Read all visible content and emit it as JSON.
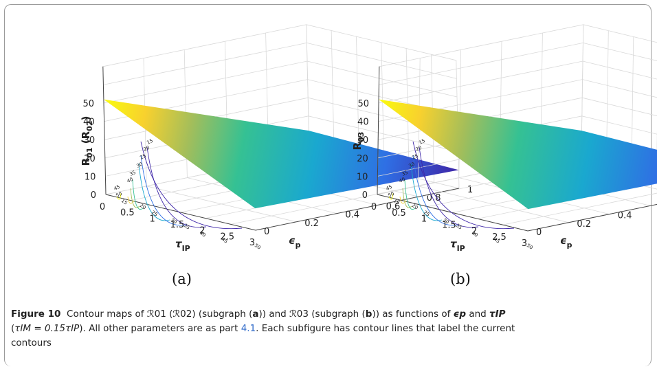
{
  "figure": {
    "subfigures": [
      {
        "label": "(a)",
        "z_label_main": "R",
        "z_label_sub": "01",
        "z_label_paren_main": "R",
        "z_label_paren_sub": "02",
        "x_label_main": "τ",
        "x_label_sub": "IP",
        "y_label_main": "ϵ",
        "y_label_sub": "p"
      },
      {
        "label": "(b)",
        "z_label_main": "R",
        "z_label_sub": "03",
        "z_label_paren_main": "",
        "z_label_paren_sub": "",
        "x_label_main": "τ",
        "x_label_sub": "IP",
        "y_label_main": "ϵ",
        "y_label_sub": "p"
      }
    ],
    "z_ticks": [
      "0",
      "10",
      "20",
      "30",
      "40",
      "50"
    ],
    "x_ticks": [
      "0",
      "0.5",
      "1",
      "1.5",
      "2",
      "2.5",
      "3"
    ],
    "y_ticks": [
      "0",
      "0.2",
      "0.4",
      "0.6",
      "0.8",
      "1"
    ],
    "contour_levels": [
      "50",
      "45",
      "40",
      "35",
      "30",
      "25",
      "20",
      "15"
    ]
  },
  "chart_data": [
    {
      "type": "surface",
      "xlabel": "τIP",
      "ylabel": "ϵp",
      "zlabel": "R01 (R02)",
      "xlim": [
        0,
        3
      ],
      "ylim": [
        0,
        1
      ],
      "zlim": [
        0,
        50
      ],
      "surface_corners": [
        {
          "x": 0,
          "y": 0,
          "z": 52
        },
        {
          "x": 3,
          "y": 0,
          "z": 12
        },
        {
          "x": 3,
          "y": 1,
          "z": 10
        },
        {
          "x": 0,
          "y": 1,
          "z": 12
        }
      ],
      "contour_levels": [
        15,
        20,
        25,
        30,
        35,
        40,
        45,
        50
      ],
      "colormap": [
        "#3e26a8",
        "#2f6fe4",
        "#1aa8cf",
        "#35c193",
        "#a4be5a",
        "#f8d12e",
        "#f9fb0e"
      ]
    },
    {
      "type": "surface",
      "xlabel": "τIP",
      "ylabel": "ϵp",
      "zlabel": "R03",
      "xlim": [
        0,
        3
      ],
      "ylim": [
        0,
        1
      ],
      "zlim": [
        0,
        50
      ],
      "surface_corners": [
        {
          "x": 0,
          "y": 0,
          "z": 52
        },
        {
          "x": 3,
          "y": 0,
          "z": 12
        },
        {
          "x": 3,
          "y": 1,
          "z": 11
        },
        {
          "x": 0,
          "y": 1,
          "z": 12
        }
      ],
      "contour_levels": [
        15,
        20,
        25,
        30,
        35,
        40,
        45,
        50
      ],
      "colormap": [
        "#3e26a8",
        "#2f6fe4",
        "#1aa8cf",
        "#35c193",
        "#a4be5a",
        "#f8d12e",
        "#f9fb0e"
      ]
    }
  ],
  "caption": {
    "figure_label": "Figure 10",
    "part1": "Contour maps of ",
    "r01": "ℛ01",
    "paren_open": " (",
    "r02": "ℛ02",
    "text_sub_a": ") (subgraph (",
    "sub_a": "a",
    "text_and": ")) and ",
    "r03": "ℛ03",
    "text_sub_b": " (subgraph (",
    "sub_b": "b",
    "text_funcs": ")) as functions of ",
    "eps_p": "ϵp",
    "and_word": " and ",
    "tau_ip": "τIP",
    "line2_open": "(",
    "tau_im_eq": "τIM = 0.15τIP",
    "line2_rest": "). All other parameters are as part ",
    "link": "4.1",
    "line2_end": ". Each subfigure has contour lines that label the current",
    "line3": "contours"
  }
}
